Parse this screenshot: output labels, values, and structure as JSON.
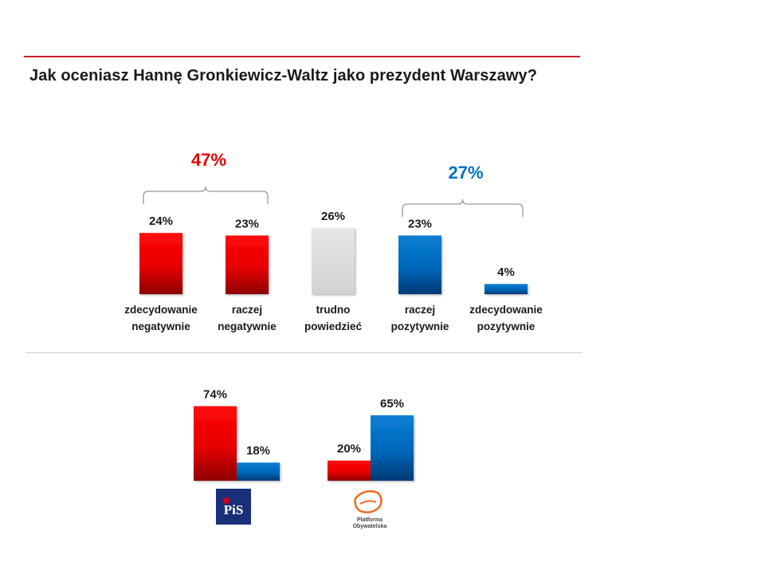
{
  "title": "Jak oceniasz Hannę Gronkiewicz-Waltz jako prezydent Warszawy?",
  "colors": {
    "negative": "#e60000",
    "neutral": "#d9d9d9",
    "positive": "#0070c0",
    "rule": "#c8202a"
  },
  "chart_data": [
    {
      "type": "bar",
      "categories": [
        [
          "zdecydowanie",
          "negatywnie"
        ],
        [
          "raczej",
          "negatywnie"
        ],
        [
          "trudno",
          "powiedzieć"
        ],
        [
          "raczej",
          "pozytywnie"
        ],
        [
          "zdecydowanie",
          "pozytywnie"
        ]
      ],
      "values": [
        24,
        23,
        26,
        23,
        4
      ],
      "value_labels": [
        "24%",
        "23%",
        "26%",
        "23%",
        "4%"
      ],
      "bar_colors": [
        "negative",
        "negative",
        "neutral",
        "positive",
        "positive"
      ],
      "groups": [
        {
          "label": "47%",
          "color": "negative",
          "members": [
            0,
            1
          ]
        },
        {
          "label": "27%",
          "color": "positive",
          "members": [
            3,
            4
          ]
        }
      ],
      "ylim": [
        0,
        30
      ]
    },
    {
      "type": "bar",
      "groups": [
        {
          "party_logo": "pis-logo",
          "logo_text": "PiS",
          "bars": [
            {
              "value": 74,
              "label": "74%",
              "color": "negative"
            },
            {
              "value": 18,
              "label": "18%",
              "color": "positive"
            }
          ]
        },
        {
          "party_logo": "po-logo",
          "logo_text": [
            "Platforma",
            "Obywatelska"
          ],
          "bars": [
            {
              "value": 20,
              "label": "20%",
              "color": "negative"
            },
            {
              "value": 65,
              "label": "65%",
              "color": "positive"
            }
          ]
        }
      ],
      "ylim": [
        0,
        80
      ]
    }
  ]
}
